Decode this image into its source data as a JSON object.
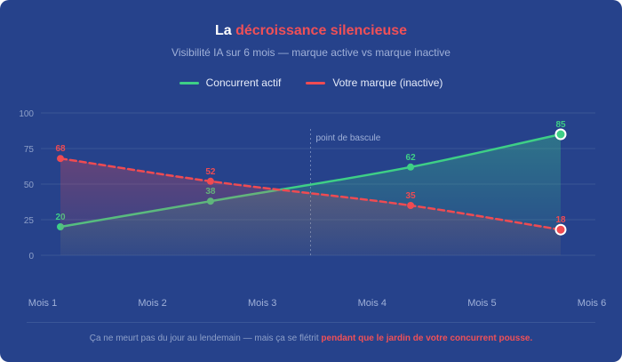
{
  "header": {
    "title_prefix": "La",
    "title_accent": "décroissance silencieuse",
    "subtitle": "Visibilité IA sur 6 mois — marque active vs marque inactive"
  },
  "footer": {
    "text": "Ça ne meurt pas du jour au lendemain — mais ça se flétrit",
    "emphasis": "pendant que le jardin de votre concurrent pousse."
  },
  "colors": {
    "active": "#3ecf86",
    "inactive": "#ef4b52"
  },
  "chart_data": {
    "type": "line",
    "categories": [
      "Mois 1",
      "Mois 2",
      "Mois 3",
      "Mois 4",
      "Mois 5",
      "Mois 6"
    ],
    "ylim": [
      0,
      100
    ],
    "yticks": [
      0,
      25,
      50,
      75,
      100
    ],
    "series": [
      {
        "name": "Concurrent actif",
        "key": "active",
        "x": [
          1,
          2.5,
          4.5,
          6
        ],
        "values": [
          20,
          38,
          62,
          85
        ],
        "labels": [
          "20",
          "38",
          "62",
          "85"
        ]
      },
      {
        "name": "Votre marque (inactive)",
        "key": "inactive",
        "x": [
          1,
          2.5,
          4.5,
          6
        ],
        "values": [
          68,
          52,
          35,
          18
        ],
        "labels": [
          "68",
          "52",
          "35",
          "18"
        ]
      }
    ],
    "annotation": {
      "text": "point de bascule",
      "x": 3.5
    },
    "grid": true,
    "legend_position": "top"
  }
}
